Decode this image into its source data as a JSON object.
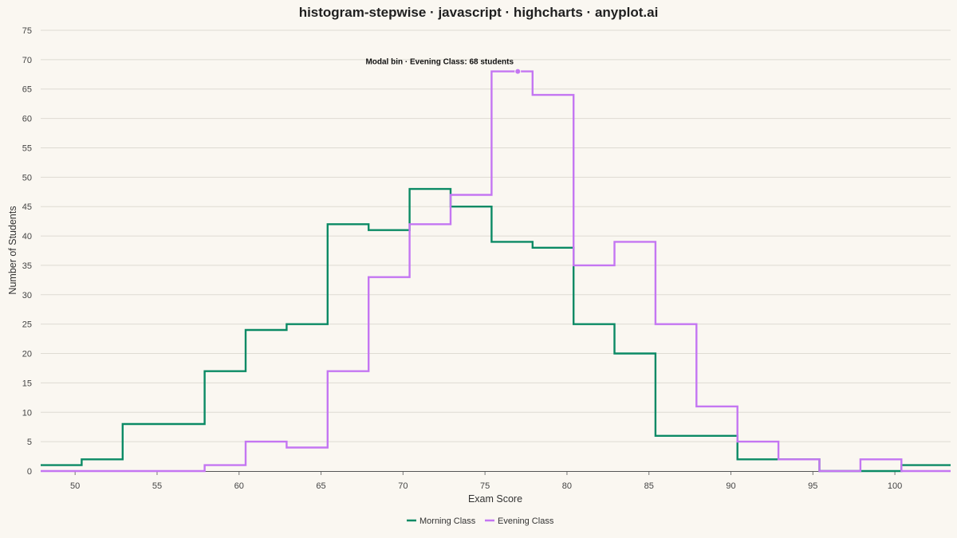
{
  "chart_data": {
    "type": "line",
    "step": true,
    "title": "histogram-stepwise · javascript · highcharts · anyplot.ai",
    "xlabel": "Exam Score",
    "ylabel": "Number of Students",
    "xlim": [
      47.9,
      103.4
    ],
    "ylim": [
      0,
      75
    ],
    "xticks": [
      50,
      55,
      60,
      65,
      70,
      75,
      80,
      85,
      90,
      95,
      100
    ],
    "yticks": [
      0,
      5,
      10,
      15,
      20,
      25,
      30,
      35,
      40,
      45,
      50,
      55,
      60,
      65,
      70,
      75
    ],
    "grid": true,
    "legend": "bottom-center",
    "bin_edges": [
      47.9,
      50.4,
      52.9,
      55.4,
      57.9,
      60.4,
      62.9,
      65.4,
      67.9,
      70.4,
      72.9,
      75.4,
      77.9,
      80.4,
      82.9,
      85.4,
      87.9,
      90.4,
      92.9,
      95.4,
      97.9,
      100.4,
      103.4
    ],
    "series": [
      {
        "name": "Morning Class",
        "color": "#0B8A65",
        "values": [
          1,
          2,
          8,
          8,
          17,
          24,
          25,
          42,
          41,
          48,
          45,
          39,
          38,
          25,
          20,
          6,
          6,
          2,
          2,
          0,
          0,
          1
        ]
      },
      {
        "name": "Evening Class",
        "color": "#C476F2",
        "values": [
          0,
          0,
          0,
          0,
          1,
          5,
          4,
          17,
          33,
          42,
          47,
          68,
          64,
          35,
          39,
          25,
          11,
          5,
          2,
          0,
          2,
          0
        ]
      }
    ],
    "annotation": {
      "text": "Modal bin · Evening Class: 68 students",
      "series": 1,
      "x": 77.0,
      "y": 68
    }
  }
}
